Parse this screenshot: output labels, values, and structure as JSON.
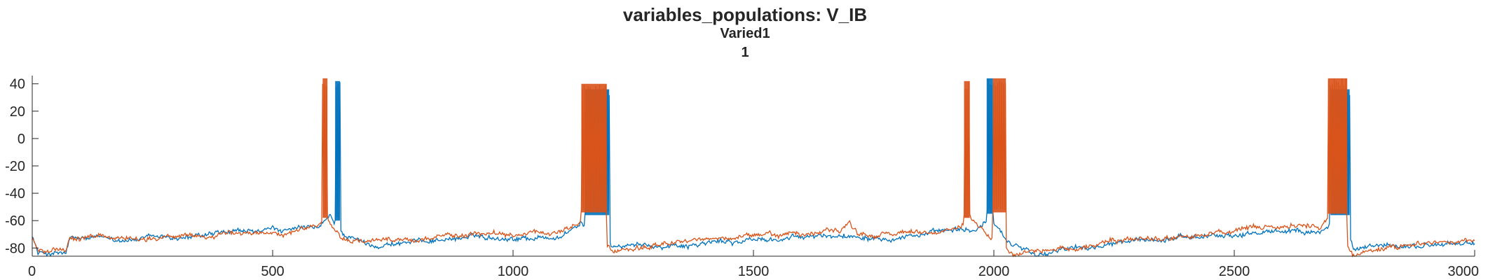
{
  "chart_data": {
    "type": "line",
    "title": "variables_populations: V_IB",
    "subtitle": "Varied1",
    "subtitle2": "1",
    "xlabel": "",
    "ylabel": "",
    "xlim": [
      0,
      3000
    ],
    "ylim": [
      -86,
      46
    ],
    "xticks": [
      0,
      500,
      1000,
      1500,
      2000,
      2500,
      3000
    ],
    "yticks": [
      -80,
      -60,
      -40,
      -20,
      0,
      20,
      40
    ],
    "grid": false,
    "legend": "none",
    "series": [
      {
        "color": "#0072BD",
        "resting": [
          [
            0,
            -70
          ],
          [
            12,
            -84
          ],
          [
            70,
            -84
          ],
          [
            78,
            -74
          ],
          [
            300,
            -73
          ],
          [
            500,
            -68
          ],
          [
            595,
            -66
          ],
          [
            620,
            -58
          ],
          [
            640,
            -70
          ],
          [
            700,
            -78
          ],
          [
            900,
            -72
          ],
          [
            1100,
            -72
          ],
          [
            1140,
            -62
          ],
          [
            1210,
            -80
          ],
          [
            1400,
            -76
          ],
          [
            1700,
            -71
          ],
          [
            1960,
            -68
          ],
          [
            1990,
            -60
          ],
          [
            2030,
            -78
          ],
          [
            2100,
            -84
          ],
          [
            2300,
            -76
          ],
          [
            2500,
            -70
          ],
          [
            2680,
            -66
          ],
          [
            2720,
            -58
          ],
          [
            2750,
            -82
          ],
          [
            2900,
            -78
          ],
          [
            3000,
            -76
          ]
        ],
        "bursts": [
          {
            "start": 630,
            "end": 640,
            "top": 42,
            "bottom": -60
          },
          {
            "start": 1150,
            "end": 1200,
            "top": 36,
            "bottom": -56
          },
          {
            "start": 1985,
            "end": 1998,
            "top": 44,
            "bottom": -55
          },
          {
            "start": 2700,
            "end": 2740,
            "top": 36,
            "bottom": -56
          }
        ]
      },
      {
        "color": "#D95319",
        "resting": [
          [
            0,
            -72
          ],
          [
            12,
            -82
          ],
          [
            70,
            -82
          ],
          [
            78,
            -73
          ],
          [
            300,
            -72
          ],
          [
            500,
            -69
          ],
          [
            590,
            -64
          ],
          [
            610,
            -58
          ],
          [
            640,
            -72
          ],
          [
            700,
            -76
          ],
          [
            900,
            -70
          ],
          [
            1070,
            -70
          ],
          [
            1100,
            -67
          ],
          [
            1140,
            -60
          ],
          [
            1210,
            -82
          ],
          [
            1400,
            -74
          ],
          [
            1680,
            -68
          ],
          [
            1700,
            -60
          ],
          [
            1720,
            -70
          ],
          [
            1930,
            -67
          ],
          [
            1950,
            -58
          ],
          [
            2040,
            -84
          ],
          [
            2100,
            -82
          ],
          [
            2300,
            -74
          ],
          [
            2500,
            -68
          ],
          [
            2680,
            -64
          ],
          [
            2700,
            -58
          ],
          [
            2750,
            -84
          ],
          [
            2900,
            -76
          ],
          [
            3000,
            -74
          ]
        ],
        "bursts": [
          {
            "start": 604,
            "end": 614,
            "top": 44,
            "bottom": -58
          },
          {
            "start": 1142,
            "end": 1195,
            "top": 40,
            "bottom": -54
          },
          {
            "start": 1938,
            "end": 1950,
            "top": 42,
            "bottom": -58
          },
          {
            "start": 1998,
            "end": 2025,
            "top": 44,
            "bottom": -54
          },
          {
            "start": 2695,
            "end": 2735,
            "top": 44,
            "bottom": -55
          }
        ]
      }
    ]
  }
}
